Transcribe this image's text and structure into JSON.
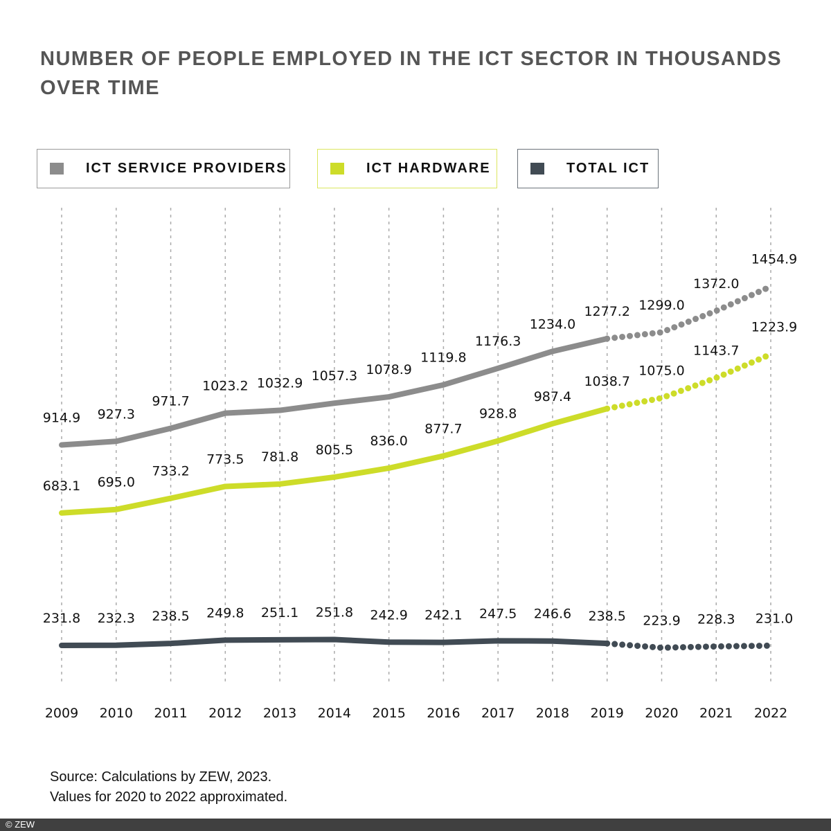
{
  "chart_data": {
    "type": "line",
    "title": "NUMBER OF PEOPLE EMPLOYED IN THE ICT SECTOR IN THOUSANDS OVER TIME",
    "title_lines": [
      "NUMBER OF PEOPLE EMPLOYED IN THE ICT SECTOR IN THOUSANDS",
      "OVER TIME"
    ],
    "x": [
      "2009",
      "2010",
      "2011",
      "2012",
      "2013",
      "2014",
      "2015",
      "2016",
      "2017",
      "2018",
      "2019",
      "2020",
      "2021",
      "2022"
    ],
    "approximated_from": "2020",
    "grid": "vertical dashed",
    "legend_placement": "top",
    "series": [
      {
        "name": "ICT SERVICE PROVIDERS",
        "color": "#8c8c8c",
        "values": [
          914.9,
          927.3,
          971.7,
          1023.2,
          1032.9,
          1057.3,
          1078.9,
          1119.8,
          1176.3,
          1234.0,
          1277.2,
          1299.0,
          1372.0,
          1454.9
        ],
        "labels": [
          "914.9",
          "927.3",
          "971.7",
          "1023.2",
          "1032.9",
          "1057.3",
          "1078.9",
          "1119.8",
          "1176.3",
          "1234.0",
          "1277.2",
          "1299.0",
          "1372.0",
          "1454.9"
        ]
      },
      {
        "name": "ICT HARDWARE",
        "color": "#cddc29",
        "values": [
          683.1,
          695.0,
          733.2,
          773.5,
          781.8,
          805.5,
          836.0,
          877.7,
          928.8,
          987.4,
          1038.7,
          1075.0,
          1143.7,
          1223.9
        ],
        "labels": [
          "683.1",
          "695.0",
          "733.2",
          "773.5",
          "781.8",
          "805.5",
          "836.0",
          "877.7",
          "928.8",
          "987.4",
          "1038.7",
          "1075.0",
          "1143.7",
          "1223.9"
        ]
      },
      {
        "name": "TOTAL ICT",
        "color": "#414b54",
        "values": [
          231.8,
          232.3,
          238.5,
          249.8,
          251.1,
          251.8,
          242.9,
          242.1,
          247.5,
          246.6,
          238.5,
          223.9,
          228.3,
          231.0
        ],
        "labels": [
          "231.8",
          "232.3",
          "238.5",
          "249.8",
          "251.1",
          "251.8",
          "242.9",
          "242.1",
          "247.5",
          "246.6",
          "238.5",
          "223.9",
          "228.3",
          "231.0"
        ]
      }
    ]
  },
  "source": [
    "Source: Calculations by ZEW, 2023.",
    "Values for 2020 to 2022 approximated."
  ],
  "footer": "© ZEW"
}
